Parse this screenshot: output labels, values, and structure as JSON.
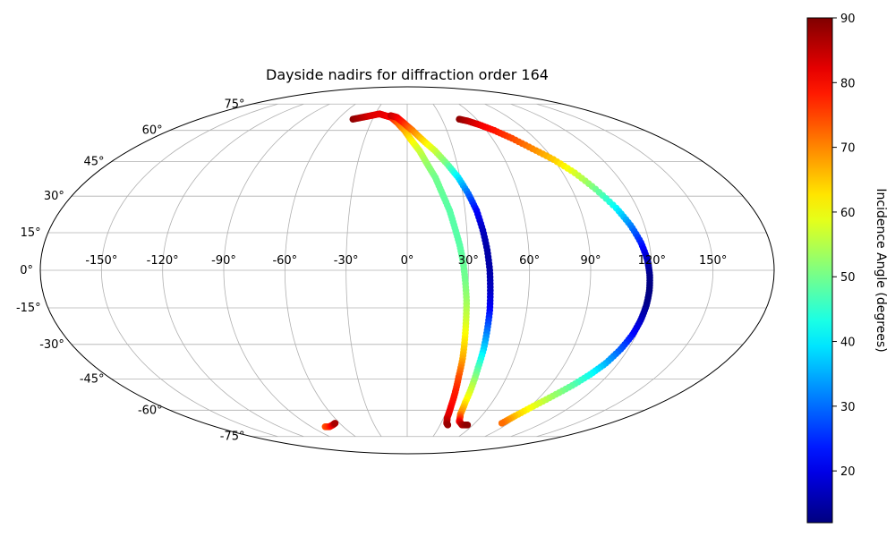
{
  "chart_data": {
    "type": "scatter",
    "projection": "mollweide",
    "title": "Dayside nadirs for diffraction order 164",
    "xlabel": "",
    "ylabel": "",
    "grid": true,
    "lon_ticks": [
      -150,
      -120,
      -90,
      -60,
      -30,
      0,
      30,
      60,
      90,
      120,
      150
    ],
    "lon_tick_labels": [
      "-150°",
      "-120°",
      "-90°",
      "-60°",
      "-30°",
      "0°",
      "30°",
      "60°",
      "90°",
      "120°",
      "150°"
    ],
    "lat_ticks": [
      -75,
      -60,
      -45,
      -30,
      -15,
      0,
      15,
      30,
      45,
      60,
      75
    ],
    "lat_tick_labels": [
      "-75°",
      "-60°",
      "-45°",
      "-30°",
      "-15°",
      "0°",
      "15°",
      "30°",
      "45°",
      "60°",
      "75°"
    ],
    "colorbar": {
      "label": "Incidence Angle (degrees)",
      "range": [
        12,
        90
      ],
      "ticks": [
        20,
        30,
        40,
        50,
        60,
        70,
        80,
        90
      ],
      "tick_labels": [
        "20",
        "30",
        "40",
        "50",
        "60",
        "70",
        "80",
        "90"
      ],
      "colormap": "jet"
    },
    "series": [
      {
        "lon": [
          -47,
          -40,
          -33,
          -26,
          -20,
          -14,
          -8,
          -2,
          3,
          8,
          12,
          16,
          19,
          22,
          24,
          26,
          27.5,
          28.5,
          29.5,
          30,
          30.5,
          31,
          31,
          31.5,
          32,
          33,
          35,
          37
        ],
        "lat": [
          66,
          67,
          68,
          69,
          68,
          67,
          64,
          60,
          55,
          50,
          44,
          38,
          31,
          24,
          17,
          10,
          3,
          -4,
          -12,
          -20,
          -28,
          -36,
          -44,
          -51,
          -58,
          -64,
          -67,
          -68
        ],
        "incidence": [
          89,
          86,
          83,
          82,
          82,
          80,
          74,
          68,
          62,
          57,
          53,
          50,
          49,
          48,
          48,
          48,
          49,
          50,
          53,
          57,
          62,
          67,
          74,
          78,
          80,
          83,
          86,
          88
        ]
      },
      {
        "lon": [
          -15,
          -9,
          -3,
          4,
          11,
          18,
          24,
          29,
          33,
          36,
          38,
          39.5,
          40.5,
          41,
          41.5,
          41.5,
          41.5,
          41,
          41,
          41,
          42,
          45,
          50,
          55
        ],
        "lat": [
          68,
          67,
          64,
          60,
          55,
          50,
          44,
          38,
          31,
          24,
          16,
          8,
          0,
          -8,
          -16,
          -24,
          -32,
          -40,
          -48,
          -56,
          -62,
          -66,
          -68,
          -68
        ],
        "incidence": [
          85,
          82,
          78,
          71,
          64,
          57,
          50,
          40,
          30,
          22,
          17,
          15,
          15,
          17,
          22,
          30,
          38,
          47,
          55,
          62,
          70,
          80,
          86,
          89
        ]
      },
      {
        "lon": [
          45,
          51,
          58,
          66,
          74,
          82,
          90,
          97,
          103,
          109,
          113,
          116,
          118,
          119,
          119.5,
          119.5,
          119,
          118,
          116,
          113,
          109,
          104,
          98,
          92,
          87,
          84
        ],
        "lat": [
          66,
          65,
          63,
          60,
          56,
          51,
          46,
          40,
          33,
          25,
          18,
          11,
          4,
          -2,
          -8,
          -14,
          -20,
          -26,
          -32,
          -38,
          -43,
          -48,
          -53,
          -58,
          -63,
          -67
        ],
        "incidence": [
          89,
          86,
          82,
          79,
          75,
          70,
          65,
          58,
          50,
          41,
          32,
          24,
          17,
          13,
          12,
          13,
          17,
          22,
          28,
          35,
          42,
          48,
          53,
          59,
          65,
          72
        ]
      },
      {
        "lon": [
          -77,
          -73,
          -68,
          -64
        ],
        "lat": [
          -69,
          -69,
          -68,
          -67
        ],
        "incidence": [
          74,
          77,
          81,
          87
        ]
      }
    ]
  }
}
